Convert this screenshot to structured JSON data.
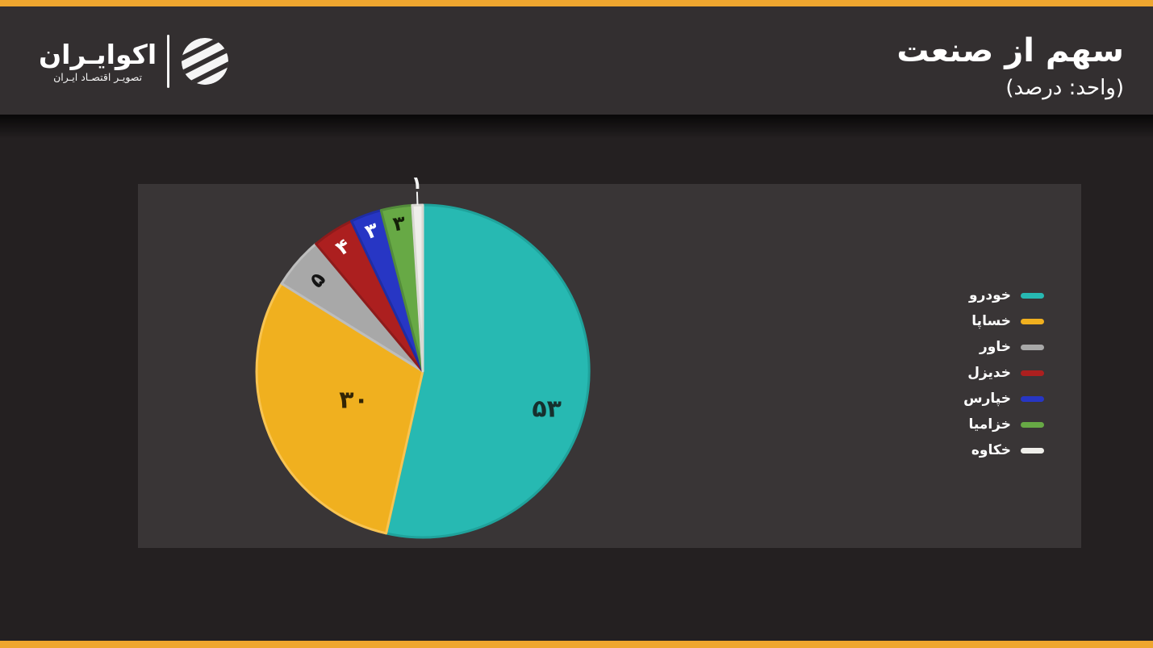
{
  "theme": {
    "accent_yellow": "#EFA62F",
    "header_bg": "#332F30",
    "page_bg": "#242021",
    "plot_bg": "#393536",
    "text": "#FFFFFF"
  },
  "header": {
    "title": "سهم از صنعت",
    "subtitle": "(واحد: درصد)",
    "logo": {
      "name": "اکوایـران",
      "tagline": "تصویـر اقتصـاد ایـران"
    }
  },
  "chart_data": {
    "type": "pie",
    "title": "سهم از صنعت",
    "unit_label": "(واحد: درصد)",
    "legend_position": "right",
    "start_angle_deg": 0,
    "direction": "clockwise",
    "slices": [
      {
        "name": "خودرو",
        "value": 53,
        "label": "۵۳",
        "color": "#27B9B2",
        "edge": "#1FA39C",
        "label_color": "#16302E"
      },
      {
        "name": "خساپا",
        "value": 30,
        "label": "۳۰",
        "color": "#F0B01F",
        "edge": "#F8C452",
        "label_color": "#332505"
      },
      {
        "name": "خاور",
        "value": 5,
        "label": "۵",
        "color": "#A8A8A8",
        "edge": "#BDBDBD",
        "label_color": "#141414"
      },
      {
        "name": "خدیزل",
        "value": 4,
        "label": "۴",
        "color": "#AC1F1F",
        "edge": "#8E1B1B",
        "label_color": "#FFFFFF"
      },
      {
        "name": "خپارس",
        "value": 3,
        "label": "۳",
        "color": "#2736C4",
        "edge": "#1F2DA4",
        "label_color": "#FFFFFF"
      },
      {
        "name": "خزامیا",
        "value": 3,
        "label": "۳",
        "color": "#67A945",
        "edge": "#538C3B",
        "label_color": "#142008"
      },
      {
        "name": "خکاوه",
        "value": 1,
        "label": "۱",
        "color": "#EFEEEA",
        "edge": "#D9D8D2",
        "label_color": "#F2F2F2",
        "label_outside": true
      }
    ]
  }
}
